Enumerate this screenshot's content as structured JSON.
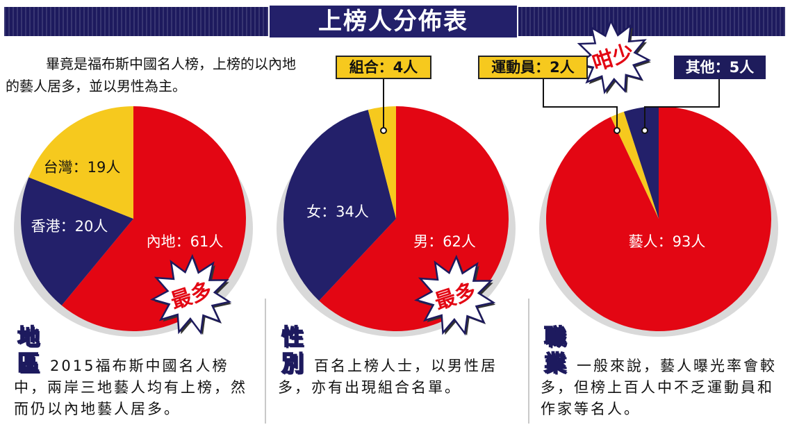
{
  "banner": {
    "title": "上榜人分佈表"
  },
  "intro": "畢竟是福布斯中國名人榜，上榜的以內地的藝人居多，並以男性為主。",
  "chart_data": [
    {
      "type": "pie",
      "title": "地區",
      "slices": [
        {
          "label": "內地：61人",
          "value": 61,
          "color": "#e30613"
        },
        {
          "label": "香港：20人",
          "value": 20,
          "color": "#23206a"
        },
        {
          "label": "台灣：19人",
          "value": 19,
          "color": "#f6c91e"
        }
      ],
      "callout": "最多"
    },
    {
      "type": "pie",
      "title": "性別",
      "slices": [
        {
          "label": "男：62人",
          "value": 62,
          "color": "#e30613"
        },
        {
          "label": "女：34人",
          "value": 34,
          "color": "#23206a"
        },
        {
          "label": "組合：4人",
          "value": 4,
          "color": "#f6c91e"
        }
      ],
      "callout": "最多"
    },
    {
      "type": "pie",
      "title": "職業",
      "slices": [
        {
          "label": "藝人：93人",
          "value": 93,
          "color": "#e30613"
        },
        {
          "label": "運動員：2人",
          "value": 2,
          "color": "#f6c91e"
        },
        {
          "label": "其他：5人",
          "value": 5,
          "color": "#23206a"
        }
      ],
      "callout": "咁少"
    }
  ],
  "columns": [
    {
      "category": [
        "地",
        "區"
      ],
      "text": "2015福布斯中國名人榜中，兩岸三地藝人均有上榜，然而仍以內地藝人居多。"
    },
    {
      "category": [
        "性",
        "別"
      ],
      "text": "百名上榜人士，以男性居多，亦有出現組合名單。"
    },
    {
      "category": [
        "職",
        "業"
      ],
      "text": "一般來說，藝人曝光率會較多，但榜上百人中不乏運動員和作家等名人。"
    }
  ]
}
